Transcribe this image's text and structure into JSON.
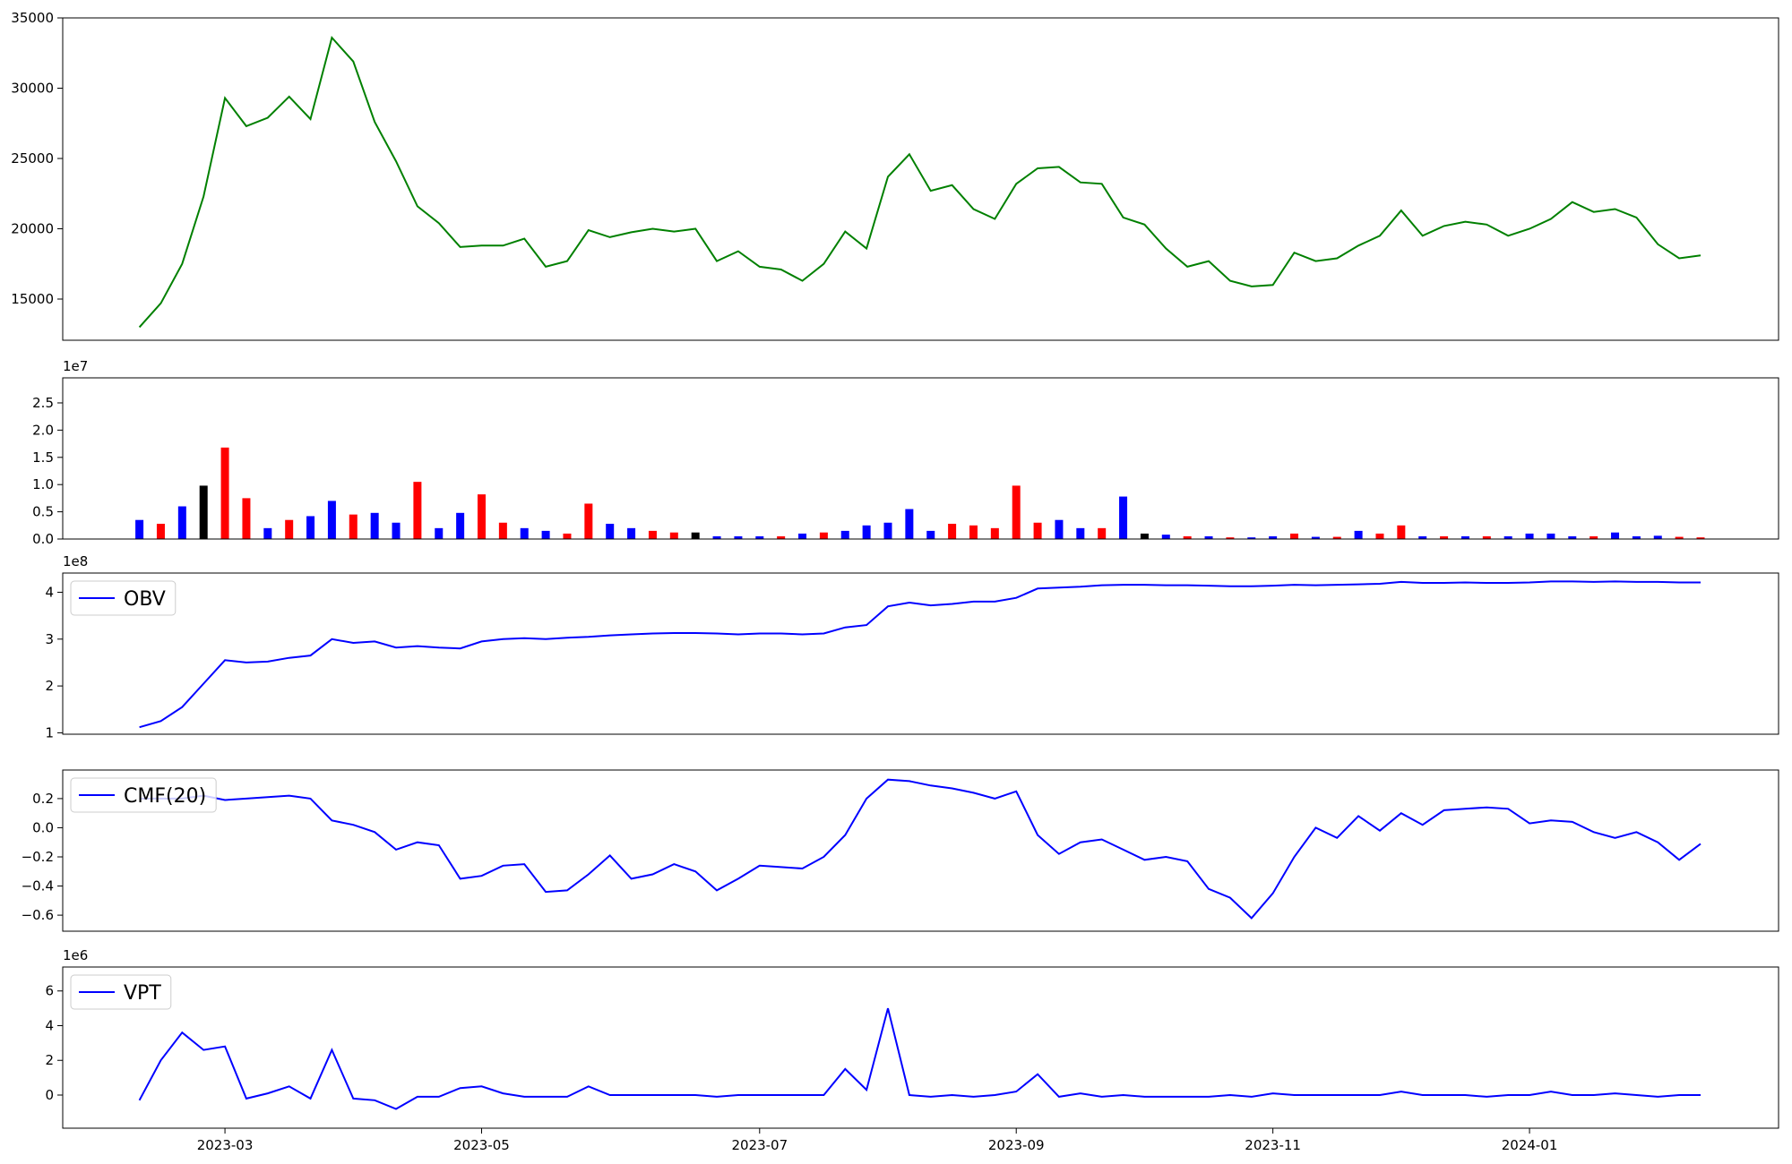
{
  "chart_data": [
    {
      "type": "line",
      "color": "green",
      "values": [
        13000,
        14700,
        17500,
        22300,
        29300,
        27300,
        27900,
        29400,
        27800,
        33600,
        31900,
        27600,
        24800,
        21600,
        20400,
        18700,
        18800,
        18800,
        19300,
        17300,
        17700,
        19900,
        19400,
        19750,
        20000,
        19800,
        20000,
        17700,
        18400,
        17300,
        17100,
        16300,
        17500,
        19800,
        18600,
        23700,
        25300,
        22700,
        23100,
        21400,
        20700,
        23200,
        24300,
        24400,
        23300,
        23200,
        20800,
        20300,
        18600,
        17300,
        17700,
        16300,
        15900,
        16000,
        18300,
        17700,
        17900,
        18800,
        19500,
        21300,
        19500,
        20200,
        20500,
        20300,
        19500,
        20000,
        20700,
        21900,
        21200,
        21400,
        20800,
        18900,
        17900,
        18100
      ],
      "ylim": [
        12070,
        35000
      ],
      "yticks": [
        15000,
        20000,
        25000,
        30000,
        35000
      ]
    },
    {
      "type": "bar",
      "offset_label": "1e7",
      "values": [
        0.35,
        0.28,
        0.6,
        0.98,
        1.68,
        0.75,
        0.2,
        0.35,
        0.42,
        0.7,
        0.45,
        0.48,
        0.3,
        1.05,
        0.2,
        0.48,
        0.82,
        0.3,
        0.2,
        0.15,
        0.1,
        0.65,
        0.28,
        0.2,
        0.15,
        0.12,
        0.12,
        0.05,
        0.05,
        0.05,
        0.05,
        0.1,
        0.12,
        0.15,
        0.25,
        0.3,
        0.55,
        0.15,
        0.28,
        0.25,
        0.2,
        0.98,
        0.3,
        0.35,
        0.2,
        0.2,
        0.78,
        0.1,
        0.08,
        0.05,
        0.05,
        0.03,
        0.03,
        0.05,
        0.1,
        0.04,
        0.04,
        0.15,
        0.1,
        0.25,
        0.05,
        0.05,
        0.05,
        0.05,
        0.05,
        0.1,
        0.1,
        0.05,
        0.05,
        0.12,
        0.05,
        0.06,
        0.04,
        0.03
      ],
      "colors": [
        "blue",
        "red",
        "blue",
        "black",
        "red",
        "red",
        "blue",
        "red",
        "blue",
        "blue",
        "red",
        "blue",
        "blue",
        "red",
        "blue",
        "blue",
        "red",
        "red",
        "blue",
        "blue",
        "red",
        "red",
        "blue",
        "blue",
        "red",
        "red",
        "black",
        "blue",
        "blue",
        "blue",
        "red",
        "blue",
        "red",
        "blue",
        "blue",
        "blue",
        "blue",
        "blue",
        "red",
        "red",
        "red",
        "red",
        "red",
        "blue",
        "blue",
        "red",
        "blue",
        "black",
        "blue",
        "red",
        "blue",
        "red",
        "blue",
        "blue",
        "red",
        "blue",
        "red",
        "blue",
        "red",
        "red",
        "blue",
        "red",
        "blue",
        "red",
        "blue",
        "blue",
        "blue",
        "blue",
        "red",
        "blue",
        "blue",
        "blue",
        "red",
        "red"
      ],
      "ylim": [
        0,
        2.96
      ],
      "yticks": [
        {
          "value": 0,
          "label": "0.0"
        },
        0.5,
        {
          "value": 1,
          "label": "1.0"
        },
        1.5,
        {
          "value": 2,
          "label": "2.0"
        },
        2.5
      ]
    },
    {
      "type": "line",
      "offset_label": "1e8",
      "legend": "upper left",
      "series": [
        {
          "name": "OBV",
          "color": "blue",
          "values": [
            1.12,
            1.25,
            1.55,
            2.05,
            2.55,
            2.5,
            2.52,
            2.6,
            2.65,
            3.0,
            2.92,
            2.95,
            2.82,
            2.85,
            2.82,
            2.8,
            2.95,
            3.0,
            3.02,
            3.0,
            3.03,
            3.05,
            3.08,
            3.1,
            3.12,
            3.13,
            3.13,
            3.12,
            3.1,
            3.12,
            3.12,
            3.1,
            3.12,
            3.25,
            3.3,
            3.7,
            3.78,
            3.72,
            3.75,
            3.8,
            3.8,
            3.88,
            4.08,
            4.1,
            4.12,
            4.15,
            4.16,
            4.16,
            4.15,
            4.15,
            4.14,
            4.13,
            4.13,
            4.14,
            4.16,
            4.15,
            4.16,
            4.17,
            4.18,
            4.22,
            4.2,
            4.2,
            4.21,
            4.2,
            4.2,
            4.21,
            4.23,
            4.23,
            4.22,
            4.23,
            4.22,
            4.22,
            4.21,
            4.21
          ]
        }
      ],
      "ylim": [
        0.97,
        4.41
      ],
      "yticks": [
        1,
        2,
        3,
        4
      ]
    },
    {
      "type": "line",
      "legend": "upper left",
      "series": [
        {
          "name": "CMF(20)",
          "color": "blue",
          "values": [
            0.2,
            0.2,
            0.2,
            0.22,
            0.19,
            0.2,
            0.21,
            0.22,
            0.2,
            0.05,
            0.02,
            -0.03,
            -0.15,
            -0.1,
            -0.12,
            -0.35,
            -0.33,
            -0.26,
            -0.25,
            -0.44,
            -0.43,
            -0.32,
            -0.19,
            -0.35,
            -0.32,
            -0.25,
            -0.3,
            -0.43,
            -0.35,
            -0.26,
            -0.27,
            -0.28,
            -0.2,
            -0.05,
            0.2,
            0.33,
            0.32,
            0.29,
            0.27,
            0.24,
            0.2,
            0.25,
            -0.05,
            -0.18,
            -0.1,
            -0.08,
            -0.15,
            -0.22,
            -0.2,
            -0.23,
            -0.42,
            -0.48,
            -0.62,
            -0.45,
            -0.2,
            0.0,
            -0.07,
            0.08,
            -0.02,
            0.1,
            0.02,
            0.12,
            0.13,
            0.14,
            0.13,
            0.03,
            0.05,
            0.04,
            -0.03,
            -0.07,
            -0.03,
            -0.1,
            -0.22,
            -0.11
          ]
        }
      ],
      "ylim": [
        -0.71,
        0.396
      ],
      "yticks": [
        {
          "value": -0.6,
          "label": "−0.6"
        },
        {
          "value": -0.4,
          "label": "−0.4"
        },
        {
          "value": -0.2,
          "label": "−0.2"
        },
        {
          "value": 0,
          "label": "0.0"
        },
        0.2
      ]
    },
    {
      "type": "line",
      "offset_label": "1e6",
      "legend": "upper left",
      "series": [
        {
          "name": "VPT",
          "color": "blue",
          "values": [
            -0.3,
            2.0,
            3.6,
            2.6,
            2.8,
            -0.2,
            0.1,
            0.5,
            -0.2,
            2.6,
            -0.2,
            -0.3,
            -0.8,
            -0.1,
            -0.1,
            0.4,
            0.5,
            0.1,
            -0.1,
            -0.1,
            -0.1,
            0.5,
            0.0,
            0.0,
            0.0,
            0.0,
            0.0,
            -0.1,
            0.0,
            0.0,
            0.0,
            0.0,
            0.0,
            1.5,
            0.3,
            5.0,
            0.0,
            -0.1,
            0.0,
            -0.1,
            0.0,
            0.2,
            1.2,
            -0.1,
            0.1,
            -0.1,
            0.0,
            -0.1,
            -0.1,
            -0.1,
            -0.1,
            0.0,
            -0.1,
            0.1,
            0.0,
            0.0,
            0.0,
            0.0,
            0.0,
            0.2,
            0.0,
            0.0,
            0.0,
            -0.1,
            0.0,
            0.0,
            0.2,
            0.0,
            0.0,
            0.1,
            0.0,
            -0.1,
            0.0,
            0.0
          ]
        }
      ],
      "categories": [
        null,
        null,
        null,
        null,
        "2023-03",
        null,
        null,
        null,
        null,
        null,
        null,
        null,
        null,
        null,
        null,
        null,
        "2023-05",
        null,
        null,
        null,
        null,
        null,
        null,
        null,
        null,
        null,
        null,
        null,
        null,
        "2023-07",
        null,
        null,
        null,
        null,
        null,
        null,
        null,
        null,
        null,
        null,
        null,
        "2023-09",
        null,
        null,
        null,
        null,
        null,
        null,
        null,
        null,
        null,
        null,
        null,
        "2023-11",
        null,
        null,
        null,
        null,
        null,
        null,
        null,
        null,
        null,
        null,
        null,
        "2024-01",
        null,
        null,
        null,
        null,
        null,
        null,
        null,
        null
      ],
      "ylim": [
        -1.91,
        7.38
      ],
      "yticks": [
        0,
        2,
        4,
        6
      ]
    }
  ]
}
